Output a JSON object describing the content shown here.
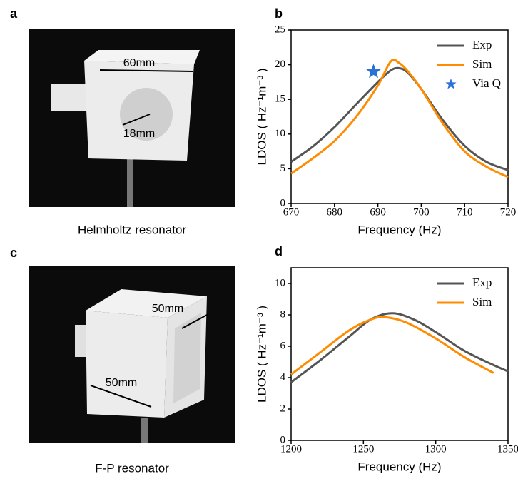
{
  "panels": {
    "a": {
      "label": "a",
      "caption": "Helmholtz resonator",
      "annotations": [
        "60mm",
        "18mm"
      ]
    },
    "c": {
      "label": "c",
      "caption": "F-P resonator",
      "annotations": [
        "50mm",
        "50mm"
      ]
    }
  },
  "chart_data": [
    {
      "type": "line",
      "label": "b",
      "xlabel": "Frequency (Hz)",
      "ylabel": "LDOS ( Hz⁻¹m⁻³ )",
      "xlim": [
        670,
        720
      ],
      "xticks": [
        670,
        680,
        690,
        700,
        710,
        720
      ],
      "ylim": [
        0,
        25
      ],
      "yticks": [
        0,
        5,
        10,
        15,
        20,
        25
      ],
      "series": [
        {
          "name": "Exp",
          "color": "#555555",
          "x": [
            670,
            675,
            680,
            685,
            690,
            693,
            695,
            697,
            700,
            705,
            710,
            715,
            720
          ],
          "values": [
            6,
            8.2,
            11,
            14.3,
            17.5,
            19.2,
            19.5,
            18.8,
            16.5,
            12,
            8.3,
            6,
            4.8
          ]
        },
        {
          "name": "Sim",
          "color": "#ff8c00",
          "x": [
            670,
            675,
            680,
            685,
            690,
            693,
            695,
            697,
            700,
            705,
            710,
            715,
            720
          ],
          "values": [
            4.3,
            6.5,
            9,
            12.5,
            17,
            20.5,
            20.2,
            19,
            16.5,
            11.5,
            7.5,
            5.3,
            3.8
          ]
        },
        {
          "name": "Via Q",
          "color": "#2a72d6",
          "marker": "star",
          "x": [
            689
          ],
          "values": [
            19
          ]
        }
      ]
    },
    {
      "type": "line",
      "label": "d",
      "xlabel": "Frequency (Hz)",
      "ylabel": "LDOS ( Hz⁻¹m⁻³ )",
      "xlim": [
        1200,
        1350
      ],
      "xticks": [
        1200,
        1250,
        1300,
        1350
      ],
      "ylim": [
        0,
        11
      ],
      "yticks": [
        0,
        2,
        4,
        6,
        8,
        10
      ],
      "series": [
        {
          "name": "Exp",
          "color": "#555555",
          "x": [
            1200,
            1220,
            1240,
            1255,
            1270,
            1285,
            1300,
            1320,
            1340,
            1350
          ],
          "values": [
            3.7,
            5.1,
            6.6,
            7.7,
            8.1,
            7.7,
            6.9,
            5.7,
            4.8,
            4.4
          ]
        },
        {
          "name": "Sim",
          "color": "#ff8c00",
          "x": [
            1200,
            1220,
            1240,
            1255,
            1265,
            1280,
            1300,
            1320,
            1340
          ],
          "values": [
            4.2,
            5.6,
            7.0,
            7.7,
            7.85,
            7.5,
            6.5,
            5.3,
            4.3
          ]
        }
      ]
    }
  ]
}
